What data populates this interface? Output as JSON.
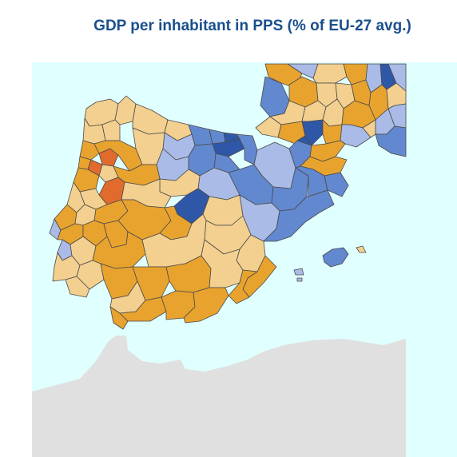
{
  "title": "GDP per inhabitant in PPS (% of EU-27 avg.)",
  "colors": {
    "sea": "#e0ffff",
    "land_outside": "#e0e0e0",
    "class_very_low": "#e06b2d",
    "class_low": "#e8a32e",
    "class_below_avg": "#f3d08f",
    "class_above_avg": "#a9bbe6",
    "class_high": "#6288cf",
    "class_very_high": "#2f57a7",
    "border": "#4a4a4a"
  }
}
